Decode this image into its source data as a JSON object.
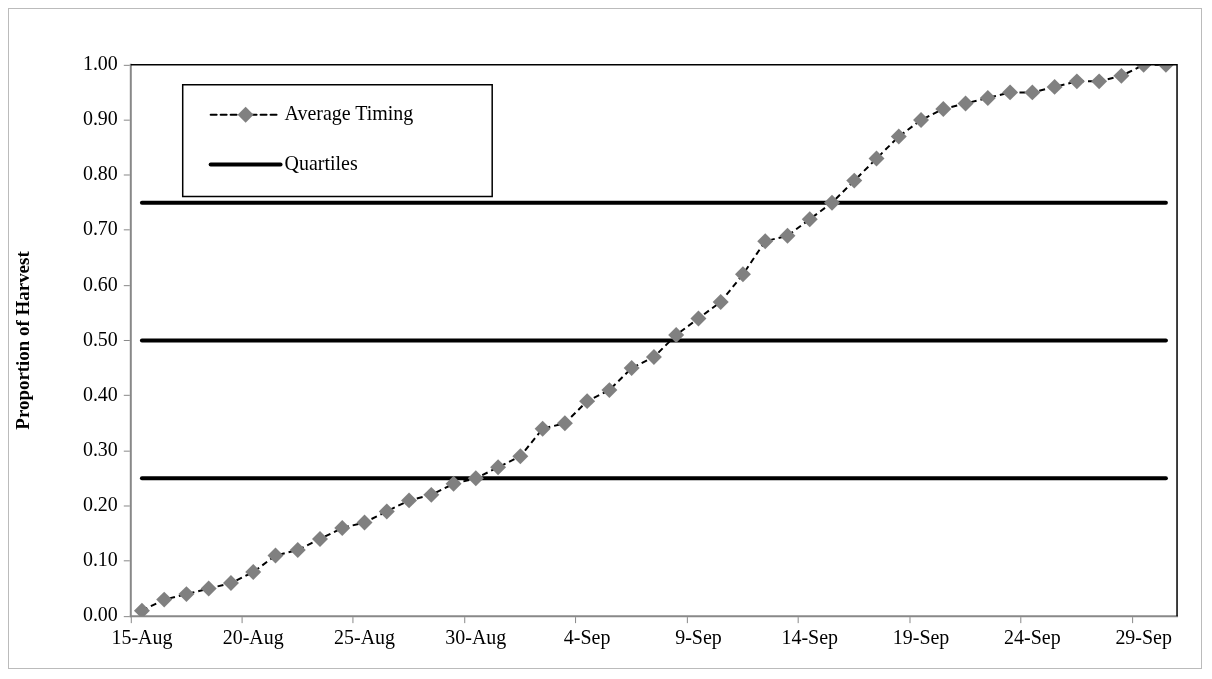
{
  "chart_data": {
    "type": "line",
    "ylabel": "Proportion of Harvest",
    "categories": [
      "15-Aug",
      null,
      null,
      null,
      null,
      "20-Aug",
      null,
      null,
      null,
      null,
      "25-Aug",
      null,
      null,
      null,
      null,
      "30-Aug",
      null,
      null,
      null,
      null,
      "4-Sep",
      null,
      null,
      null,
      null,
      "9-Sep",
      null,
      null,
      null,
      null,
      "14-Sep",
      null,
      null,
      null,
      null,
      "19-Sep",
      null,
      null,
      null,
      null,
      "24-Sep",
      null,
      null,
      null,
      null,
      "29-Sep",
      null
    ],
    "series": [
      {
        "name": "Average Timing",
        "color": "#808080",
        "marker": "diamond",
        "line_style": "dashed",
        "values": [
          0.01,
          0.03,
          0.04,
          0.05,
          0.06,
          0.08,
          0.11,
          0.12,
          0.14,
          0.16,
          0.17,
          0.19,
          0.21,
          0.22,
          0.24,
          0.25,
          0.27,
          0.29,
          0.34,
          0.35,
          0.39,
          0.41,
          0.45,
          0.47,
          0.51,
          0.54,
          0.57,
          0.62,
          0.68,
          0.69,
          0.72,
          0.75,
          0.79,
          0.83,
          0.87,
          0.9,
          0.92,
          0.93,
          0.94,
          0.95,
          0.95,
          0.96,
          0.97,
          0.97,
          0.98,
          1.0,
          1.0
        ]
      }
    ],
    "ref_lines": [
      {
        "axis": "y",
        "value": 0.25,
        "label": "Quartiles",
        "color": "#000000",
        "line_style": "solid"
      },
      {
        "axis": "y",
        "value": 0.5,
        "color": "#000000",
        "line_style": "solid"
      },
      {
        "axis": "y",
        "value": 0.75,
        "color": "#000000",
        "line_style": "solid"
      }
    ],
    "ylim": [
      0,
      1
    ],
    "yticks": [
      {
        "value": 0,
        "label": "0.00"
      },
      {
        "value": 0.1,
        "label": "0.10"
      },
      {
        "value": 0.2,
        "label": "0.20"
      },
      {
        "value": 0.3,
        "label": "0.30"
      },
      {
        "value": 0.4,
        "label": "0.40"
      },
      {
        "value": 0.5,
        "label": "0.50"
      },
      {
        "value": 0.6,
        "label": "0.60"
      },
      {
        "value": 0.7,
        "label": "0.70"
      },
      {
        "value": 0.8,
        "label": "0.80"
      },
      {
        "value": 0.9,
        "label": "0.90"
      },
      {
        "value": 1,
        "label": "1.00"
      }
    ],
    "grid": false,
    "legend": "top left"
  }
}
